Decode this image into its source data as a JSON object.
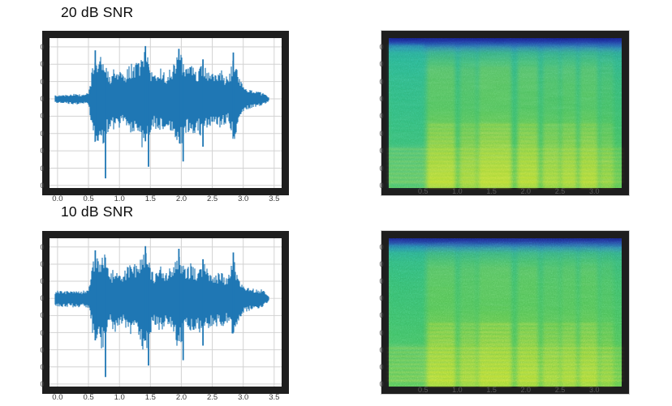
{
  "rows": [
    {
      "label": "20 dB SNR"
    },
    {
      "label": "10 dB SNR"
    }
  ],
  "figure": {
    "background": "#ffffff",
    "frame_color": "#1e1e1e",
    "grid_color": "#d2d2d2"
  },
  "chart_data": [
    {
      "type": "line",
      "subtype": "waveform",
      "row_label": "20 dB SNR",
      "color": "#1f77b4",
      "noise_floor": 0.06,
      "x_axis": {
        "unit": "s",
        "range_s": [
          0,
          3.5
        ],
        "ticks": [
          "0.0",
          "0.5",
          "1.0",
          "1.5",
          "2.0",
          "2.5",
          "3.0",
          "3.5"
        ]
      },
      "envelope_start_s": 0.0,
      "envelope_step_s": 0.05,
      "envelope": [
        0.05,
        0.05,
        0.06,
        0.06,
        0.07,
        0.08,
        0.08,
        0.07,
        0.06,
        0.07,
        0.12,
        0.5,
        0.85,
        0.75,
        0.88,
        0.95,
        0.65,
        0.5,
        0.55,
        0.62,
        0.55,
        0.48,
        0.55,
        0.62,
        0.68,
        0.66,
        0.72,
        0.85,
        0.98,
        0.9,
        0.62,
        0.5,
        0.56,
        0.62,
        0.55,
        0.5,
        0.55,
        0.6,
        0.75,
        0.95,
        0.82,
        0.62,
        0.58,
        0.66,
        0.62,
        0.58,
        0.66,
        0.72,
        0.58,
        0.52,
        0.48,
        0.52,
        0.48,
        0.55,
        0.45,
        0.42,
        0.6,
        0.8,
        0.55,
        0.35,
        0.25,
        0.2,
        0.17,
        0.15,
        0.13,
        0.12,
        0.11,
        0.08,
        0.05
      ],
      "spikes": [
        {
          "t": 0.61,
          "up": 0.92,
          "dn": 0.8
        },
        {
          "t": 0.775,
          "up": 0.5,
          "dn": 1.5
        },
        {
          "t": 1.42,
          "up": 1.0,
          "dn": 0.8
        },
        {
          "t": 1.47,
          "up": 0.6,
          "dn": 1.28
        },
        {
          "t": 1.96,
          "up": 0.95,
          "dn": 0.7
        },
        {
          "t": 2.03,
          "up": 0.5,
          "dn": 1.18
        },
        {
          "t": 2.35,
          "up": 0.75,
          "dn": 0.9
        },
        {
          "t": 2.84,
          "up": 0.88,
          "dn": 0.65
        }
      ]
    },
    {
      "type": "heatmap",
      "subtype": "spectrogram",
      "row_label": "20 dB SNR",
      "x_axis": {
        "unit": "s",
        "range_s": [
          0,
          3.4
        ],
        "ticks": [
          "0.5",
          "1.0",
          "1.5",
          "2.0",
          "2.5",
          "3.0"
        ]
      },
      "palette": {
        "bg_stops": [
          [
            0,
            "#131c82"
          ],
          [
            0.02,
            "#1a2f96"
          ],
          [
            0.045,
            "#2356aa"
          ],
          [
            0.07,
            "#2a80a8"
          ],
          [
            0.1,
            "#29a18c"
          ],
          [
            0.16,
            "#2bae80"
          ],
          [
            0.3,
            "#31b371"
          ],
          [
            0.55,
            "#36b765"
          ],
          [
            0.75,
            "#40bb5b"
          ],
          [
            0.9,
            "#4fc052"
          ],
          [
            1,
            "#5ac44e"
          ]
        ],
        "band_stops": [
          [
            0,
            "rgba(60,180,90,0)"
          ],
          [
            0.05,
            "rgba(80,195,75,0.22)"
          ],
          [
            0.18,
            "rgba(150,212,55,0.42)"
          ],
          [
            0.45,
            "rgba(130,208,52,0.40)"
          ],
          [
            0.7,
            "rgba(185,218,42,0.52)"
          ],
          [
            0.88,
            "rgba(215,224,38,0.65)"
          ],
          [
            1,
            "rgba(228,230,36,0.72)"
          ]
        ],
        "quiet_teal": "#1db49b",
        "stripe_color": "#e0e62c"
      },
      "quiet_opacity": 0.3,
      "band_gain": 0.85,
      "speckle_opacity": 0.5,
      "streak_opacity": 0.32,
      "speech_bands": [
        {
          "t0": 0.56,
          "t1": 0.97,
          "s": 0.95
        },
        {
          "t0": 1.04,
          "t1": 1.28,
          "s": 0.72
        },
        {
          "t0": 1.31,
          "t1": 1.79,
          "s": 1.0
        },
        {
          "t0": 1.88,
          "t1": 2.18,
          "s": 0.9
        },
        {
          "t0": 2.25,
          "t1": 2.49,
          "s": 0.68
        },
        {
          "t0": 2.52,
          "t1": 2.74,
          "s": 0.78
        },
        {
          "t0": 2.79,
          "t1": 3.05,
          "s": 0.85
        },
        {
          "t0": 3.09,
          "t1": 3.28,
          "s": 0.45
        }
      ]
    },
    {
      "type": "line",
      "subtype": "waveform",
      "row_label": "10 dB SNR",
      "color": "#1f77b4",
      "noise_floor": 0.14,
      "x_axis": {
        "unit": "s",
        "range_s": [
          0,
          3.5
        ],
        "ticks": [
          "0.0",
          "0.5",
          "1.0",
          "1.5",
          "2.0",
          "2.5",
          "3.0",
          "3.5"
        ]
      },
      "envelope_start_s": 0.0,
      "envelope_step_s": 0.05,
      "envelope": [
        0.05,
        0.05,
        0.06,
        0.06,
        0.07,
        0.08,
        0.08,
        0.07,
        0.06,
        0.07,
        0.12,
        0.5,
        0.85,
        0.75,
        0.88,
        0.95,
        0.65,
        0.5,
        0.55,
        0.62,
        0.55,
        0.48,
        0.55,
        0.62,
        0.68,
        0.66,
        0.72,
        0.85,
        0.98,
        0.9,
        0.62,
        0.5,
        0.56,
        0.62,
        0.55,
        0.5,
        0.55,
        0.6,
        0.75,
        0.95,
        0.82,
        0.62,
        0.58,
        0.66,
        0.62,
        0.58,
        0.66,
        0.72,
        0.58,
        0.52,
        0.48,
        0.52,
        0.48,
        0.55,
        0.45,
        0.42,
        0.6,
        0.8,
        0.55,
        0.35,
        0.25,
        0.2,
        0.17,
        0.15,
        0.13,
        0.12,
        0.11,
        0.08,
        0.05
      ],
      "spikes": [
        {
          "t": 0.61,
          "up": 0.92,
          "dn": 0.8
        },
        {
          "t": 0.775,
          "up": 0.5,
          "dn": 1.5
        },
        {
          "t": 1.42,
          "up": 1.0,
          "dn": 0.8
        },
        {
          "t": 1.47,
          "up": 0.6,
          "dn": 1.28
        },
        {
          "t": 1.96,
          "up": 0.95,
          "dn": 0.7
        },
        {
          "t": 2.03,
          "up": 0.5,
          "dn": 1.18
        },
        {
          "t": 2.35,
          "up": 0.75,
          "dn": 0.9
        },
        {
          "t": 2.84,
          "up": 0.88,
          "dn": 0.65
        }
      ]
    },
    {
      "type": "heatmap",
      "subtype": "spectrogram",
      "row_label": "10 dB SNR",
      "x_axis": {
        "unit": "s",
        "range_s": [
          0,
          3.4
        ],
        "ticks": [
          "0.5",
          "1.0",
          "1.5",
          "2.0",
          "2.5",
          "3.0"
        ]
      },
      "palette": {
        "bg_stops": [
          [
            0,
            "#15207e"
          ],
          [
            0.02,
            "#1d3594"
          ],
          [
            0.045,
            "#265fa6"
          ],
          [
            0.07,
            "#2b87a0"
          ],
          [
            0.1,
            "#2ea67f"
          ],
          [
            0.16,
            "#33b26f"
          ],
          [
            0.3,
            "#39b763"
          ],
          [
            0.55,
            "#40ba59"
          ],
          [
            0.75,
            "#4abe52"
          ],
          [
            0.9,
            "#57c34c"
          ],
          [
            1,
            "#62c648"
          ]
        ],
        "band_stops": [
          [
            0,
            "rgba(60,180,90,0)"
          ],
          [
            0.05,
            "rgba(80,195,75,0.20)"
          ],
          [
            0.18,
            "rgba(150,212,55,0.38)"
          ],
          [
            0.45,
            "rgba(130,208,52,0.36)"
          ],
          [
            0.7,
            "rgba(185,218,42,0.48)"
          ],
          [
            0.88,
            "rgba(215,224,38,0.60)"
          ],
          [
            1,
            "rgba(228,230,36,0.68)"
          ]
        ],
        "quiet_teal": "#1db49b",
        "stripe_color": "#e0e62c"
      },
      "quiet_opacity": 0.14,
      "band_gain": 0.78,
      "speckle_opacity": 0.58,
      "streak_opacity": 0.3,
      "speech_bands": [
        {
          "t0": 0.56,
          "t1": 0.97,
          "s": 0.95
        },
        {
          "t0": 1.04,
          "t1": 1.28,
          "s": 0.72
        },
        {
          "t0": 1.31,
          "t1": 1.79,
          "s": 1.0
        },
        {
          "t0": 1.88,
          "t1": 2.18,
          "s": 0.9
        },
        {
          "t0": 2.25,
          "t1": 2.49,
          "s": 0.68
        },
        {
          "t0": 2.52,
          "t1": 2.74,
          "s": 0.78
        },
        {
          "t0": 2.79,
          "t1": 3.05,
          "s": 0.85
        },
        {
          "t0": 3.09,
          "t1": 3.28,
          "s": 0.45
        }
      ]
    }
  ]
}
